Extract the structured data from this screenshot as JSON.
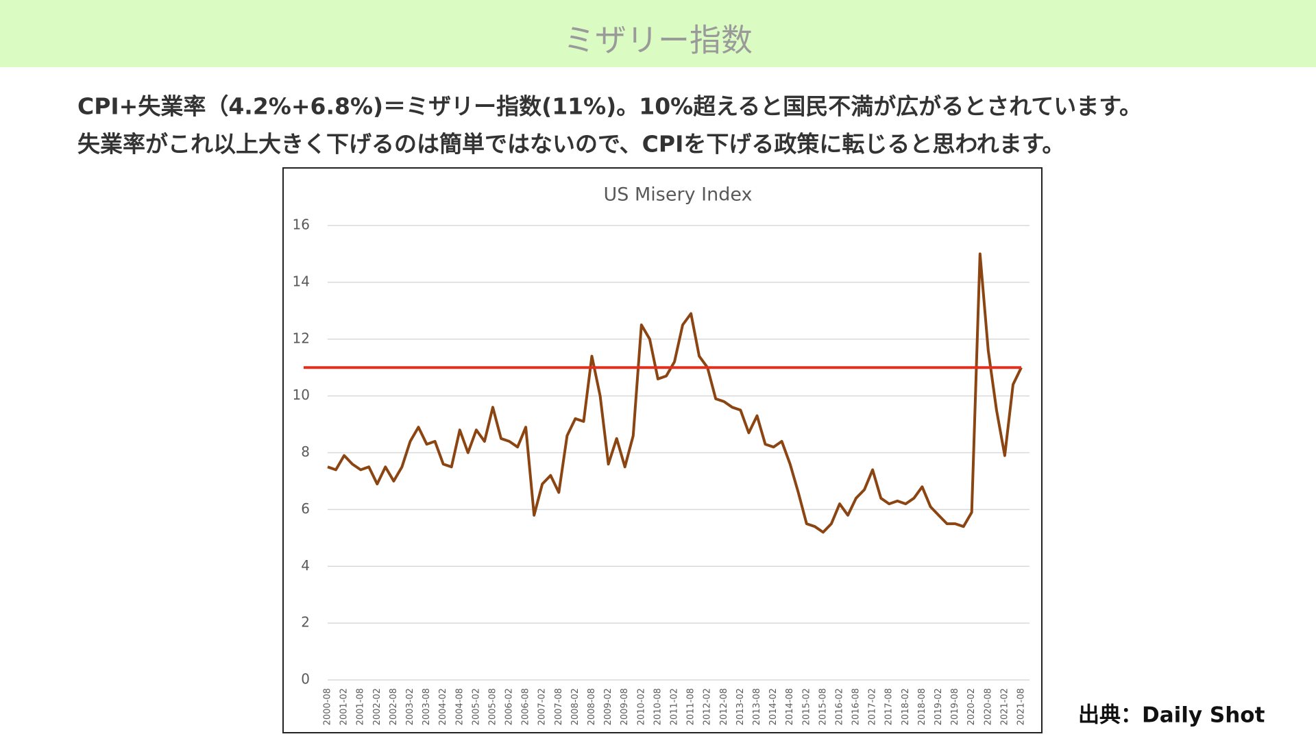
{
  "header": {
    "title": "ミザリー指数"
  },
  "body": {
    "lines": [
      "CPI+失業率（4.2%+6.8%)＝ミザリー指数(11%)。10%超えると国民不満が広がるとされています。",
      "失業率がこれ以上大きく下げるのは簡単ではないので、CPIを下げる政策に転じると思われます。"
    ]
  },
  "source": "出典：Daily Shot",
  "chart_data": {
    "type": "line",
    "title": "US Misery Index",
    "categories": [
      "2000-08",
      null,
      "2001-02",
      null,
      "2001-08",
      null,
      "2002-02",
      null,
      "2002-08",
      null,
      "2003-02",
      null,
      "2003-08",
      null,
      "2004-02",
      null,
      "2004-08",
      null,
      "2005-02",
      null,
      "2005-08",
      null,
      "2006-02",
      null,
      "2006-08",
      null,
      "2007-02",
      null,
      "2007-08",
      null,
      "2008-02",
      null,
      "2008-08",
      null,
      "2009-02",
      null,
      "2009-08",
      null,
      "2010-02",
      null,
      "2010-08",
      null,
      "2011-02",
      null,
      "2011-08",
      null,
      "2012-02",
      null,
      "2012-08",
      null,
      "2013-02",
      null,
      "2013-08",
      null,
      "2014-02",
      null,
      "2014-08",
      null,
      "2015-02",
      null,
      "2015-08",
      null,
      "2016-02",
      null,
      "2016-08",
      null,
      "2017-02",
      null,
      "2017-08",
      null,
      "2018-02",
      null,
      "2018-08",
      null,
      "2019-02",
      null,
      "2019-08",
      null,
      "2020-02",
      null,
      "2020-08",
      null,
      "2021-02",
      null,
      "2021-08"
    ],
    "series": [
      {
        "color": "#8b4513",
        "values": [
          7.5,
          7.4,
          7.9,
          7.6,
          7.4,
          7.5,
          6.9,
          7.5,
          7.0,
          7.5,
          8.4,
          8.9,
          8.3,
          8.4,
          7.6,
          7.5,
          8.8,
          8.0,
          8.8,
          8.4,
          9.6,
          8.5,
          8.4,
          8.2,
          8.9,
          5.8,
          6.9,
          7.2,
          6.6,
          8.6,
          9.2,
          9.1,
          11.4,
          10.0,
          7.6,
          8.5,
          7.5,
          8.6,
          12.5,
          12.0,
          10.6,
          10.7,
          11.2,
          12.5,
          12.9,
          11.4,
          11.0,
          9.9,
          9.8,
          9.6,
          9.5,
          8.7,
          9.3,
          8.3,
          8.2,
          8.4,
          7.6,
          6.6,
          5.5,
          5.4,
          5.2,
          5.5,
          6.2,
          5.8,
          6.4,
          6.7,
          7.4,
          6.4,
          6.2,
          6.3,
          6.2,
          6.4,
          6.8,
          6.1,
          5.8,
          5.5,
          5.5,
          5.4,
          5.9,
          15.0,
          11.6,
          9.5,
          7.9,
          10.4,
          11.0
        ]
      }
    ],
    "reference_line": {
      "value": 11,
      "color": "#e03020"
    },
    "ylim": [
      0,
      16
    ],
    "yticks": [
      0,
      2,
      4,
      6,
      8,
      10,
      12,
      14,
      16
    ],
    "grid": true
  }
}
